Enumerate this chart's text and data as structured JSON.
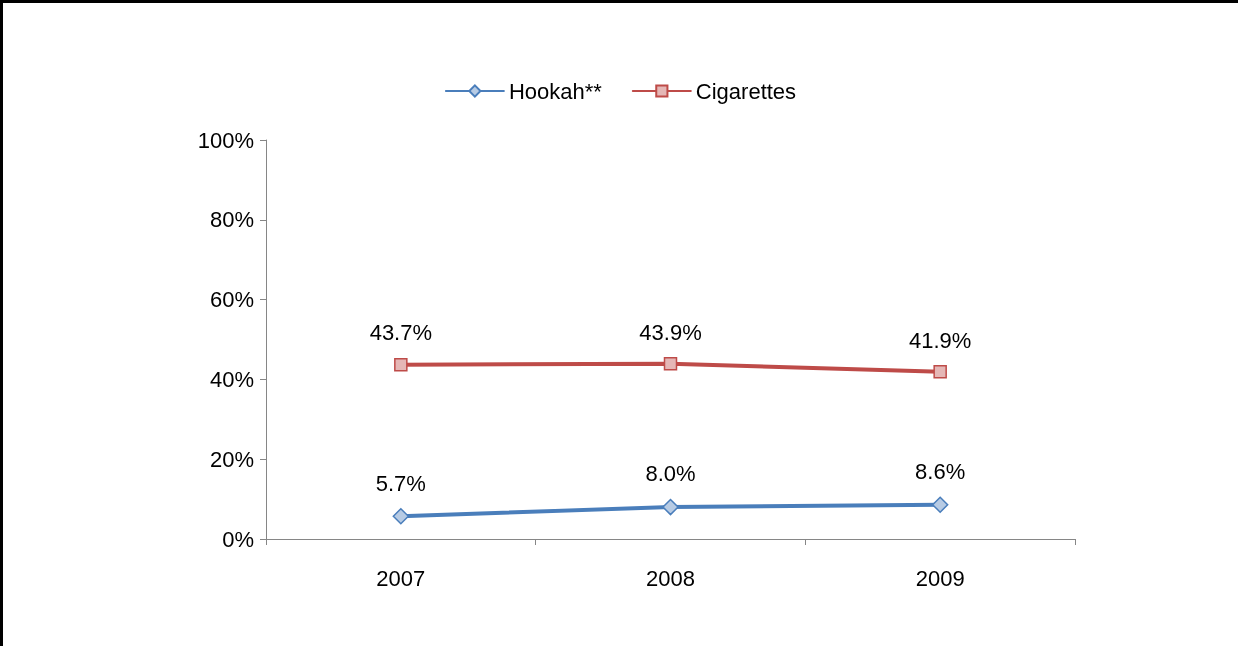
{
  "chart_data": {
    "type": "line",
    "categories": [
      "2007",
      "2008",
      "2009"
    ],
    "series": [
      {
        "name": "Hookah**",
        "color": "#4a7ebb",
        "marker": "diamond",
        "values": [
          5.7,
          8.0,
          8.6
        ],
        "value_labels": [
          "5.7%",
          "8.0%",
          "8.6%"
        ]
      },
      {
        "name": "Cigarettes",
        "color": "#be4b48",
        "marker": "square",
        "values": [
          43.7,
          43.9,
          41.9
        ],
        "value_labels": [
          "43.7%",
          "43.9%",
          "41.9%"
        ]
      }
    ],
    "ylim": [
      0,
      100
    ],
    "yticks": [
      {
        "value": 0,
        "label": "0%"
      },
      {
        "value": 20,
        "label": "20%"
      },
      {
        "value": 40,
        "label": "40%"
      },
      {
        "value": 60,
        "label": "60%"
      },
      {
        "value": 80,
        "label": "80%"
      },
      {
        "value": 100,
        "label": "100%"
      }
    ],
    "grid": false,
    "legend": "top",
    "line_style": "solid"
  }
}
